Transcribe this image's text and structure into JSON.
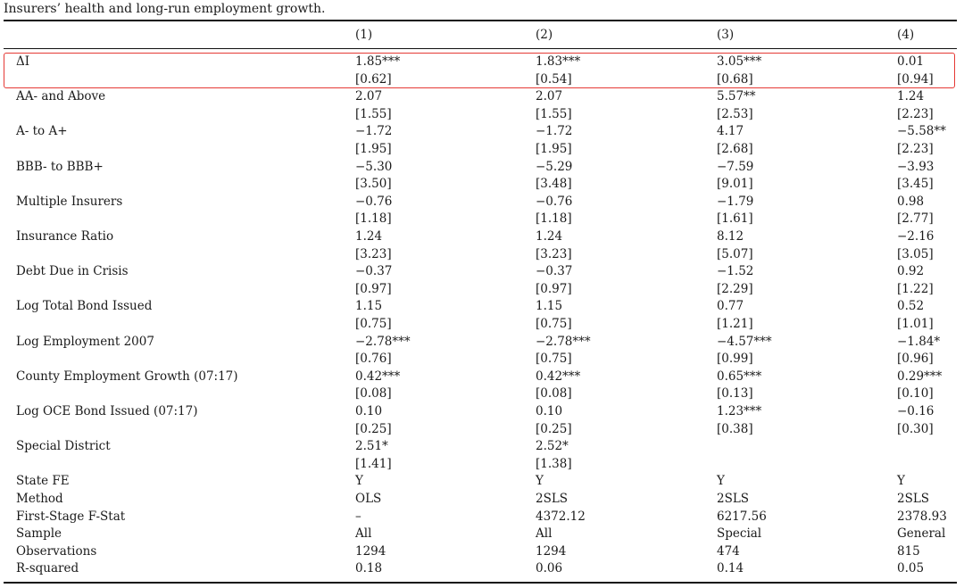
{
  "caption": "Insurers’ health and long-run employment growth.",
  "highlight_color": "#e53935",
  "columns": [
    "(1)",
    "(2)",
    "(3)",
    "(4)"
  ],
  "coef_rows": [
    {
      "label": "ΔI",
      "coef": [
        "1.85***",
        "1.83***",
        "3.05***",
        "0.01"
      ],
      "se": [
        "[0.62]",
        "[0.54]",
        "[0.68]",
        "[0.94]"
      ]
    },
    {
      "label": "AA- and Above",
      "coef": [
        "2.07",
        "2.07",
        "5.57**",
        "1.24"
      ],
      "se": [
        "[1.55]",
        "[1.55]",
        "[2.53]",
        "[2.23]"
      ]
    },
    {
      "label": "A- to A+",
      "coef": [
        "−1.72",
        "−1.72",
        "4.17",
        "−5.58**"
      ],
      "se": [
        "[1.95]",
        "[1.95]",
        "[2.68]",
        "[2.23]"
      ]
    },
    {
      "label": "BBB- to BBB+",
      "coef": [
        "−5.30",
        "−5.29",
        "−7.59",
        "−3.93"
      ],
      "se": [
        "[3.50]",
        "[3.48]",
        "[9.01]",
        "[3.45]"
      ]
    },
    {
      "label": "Multiple Insurers",
      "coef": [
        "−0.76",
        "−0.76",
        "−1.79",
        "0.98"
      ],
      "se": [
        "[1.18]",
        "[1.18]",
        "[1.61]",
        "[2.77]"
      ]
    },
    {
      "label": "Insurance Ratio",
      "coef": [
        "1.24",
        "1.24",
        "8.12",
        "−2.16"
      ],
      "se": [
        "[3.23]",
        "[3.23]",
        "[5.07]",
        "[3.05]"
      ]
    },
    {
      "label": "Debt Due in Crisis",
      "coef": [
        "−0.37",
        "−0.37",
        "−1.52",
        "0.92"
      ],
      "se": [
        "[0.97]",
        "[0.97]",
        "[2.29]",
        "[1.22]"
      ]
    },
    {
      "label": "Log Total Bond Issued",
      "coef": [
        "1.15",
        "1.15",
        "0.77",
        "0.52"
      ],
      "se": [
        "[0.75]",
        "[0.75]",
        "[1.21]",
        "[1.01]"
      ]
    },
    {
      "label": "Log Employment 2007",
      "coef": [
        "−2.78***",
        "−2.78***",
        "−4.57***",
        "−1.84*"
      ],
      "se": [
        "[0.76]",
        "[0.75]",
        "[0.99]",
        "[0.96]"
      ]
    },
    {
      "label": "County Employment Growth (07:17)",
      "coef": [
        "0.42***",
        "0.42***",
        "0.65***",
        "0.29***"
      ],
      "se": [
        "[0.08]",
        "[0.08]",
        "[0.13]",
        "[0.10]"
      ]
    },
    {
      "label": "Log OCE Bond Issued (07:17)",
      "coef": [
        "0.10",
        "0.10",
        "1.23***",
        "−0.16"
      ],
      "se": [
        "[0.25]",
        "[0.25]",
        "[0.38]",
        "[0.30]"
      ]
    },
    {
      "label": "Special District",
      "coef": [
        "2.51*",
        "2.52*",
        "",
        ""
      ],
      "se": [
        "[1.41]",
        "[1.38]",
        "",
        ""
      ]
    }
  ],
  "stat_rows": [
    {
      "label": "State FE",
      "values": [
        "Y",
        "Y",
        "Y",
        "Y"
      ]
    },
    {
      "label": "Method",
      "values": [
        "OLS",
        "2SLS",
        "2SLS",
        "2SLS"
      ]
    },
    {
      "label": "First-Stage F-Stat",
      "values": [
        "–",
        "4372.12",
        "6217.56",
        "2378.93"
      ]
    },
    {
      "label": "Sample",
      "values": [
        "All",
        "All",
        "Special",
        "General"
      ]
    },
    {
      "label": "Observations",
      "values": [
        "1294",
        "1294",
        "474",
        "815"
      ]
    },
    {
      "label": "R-squared",
      "values": [
        "0.18",
        "0.06",
        "0.14",
        "0.05"
      ]
    }
  ]
}
